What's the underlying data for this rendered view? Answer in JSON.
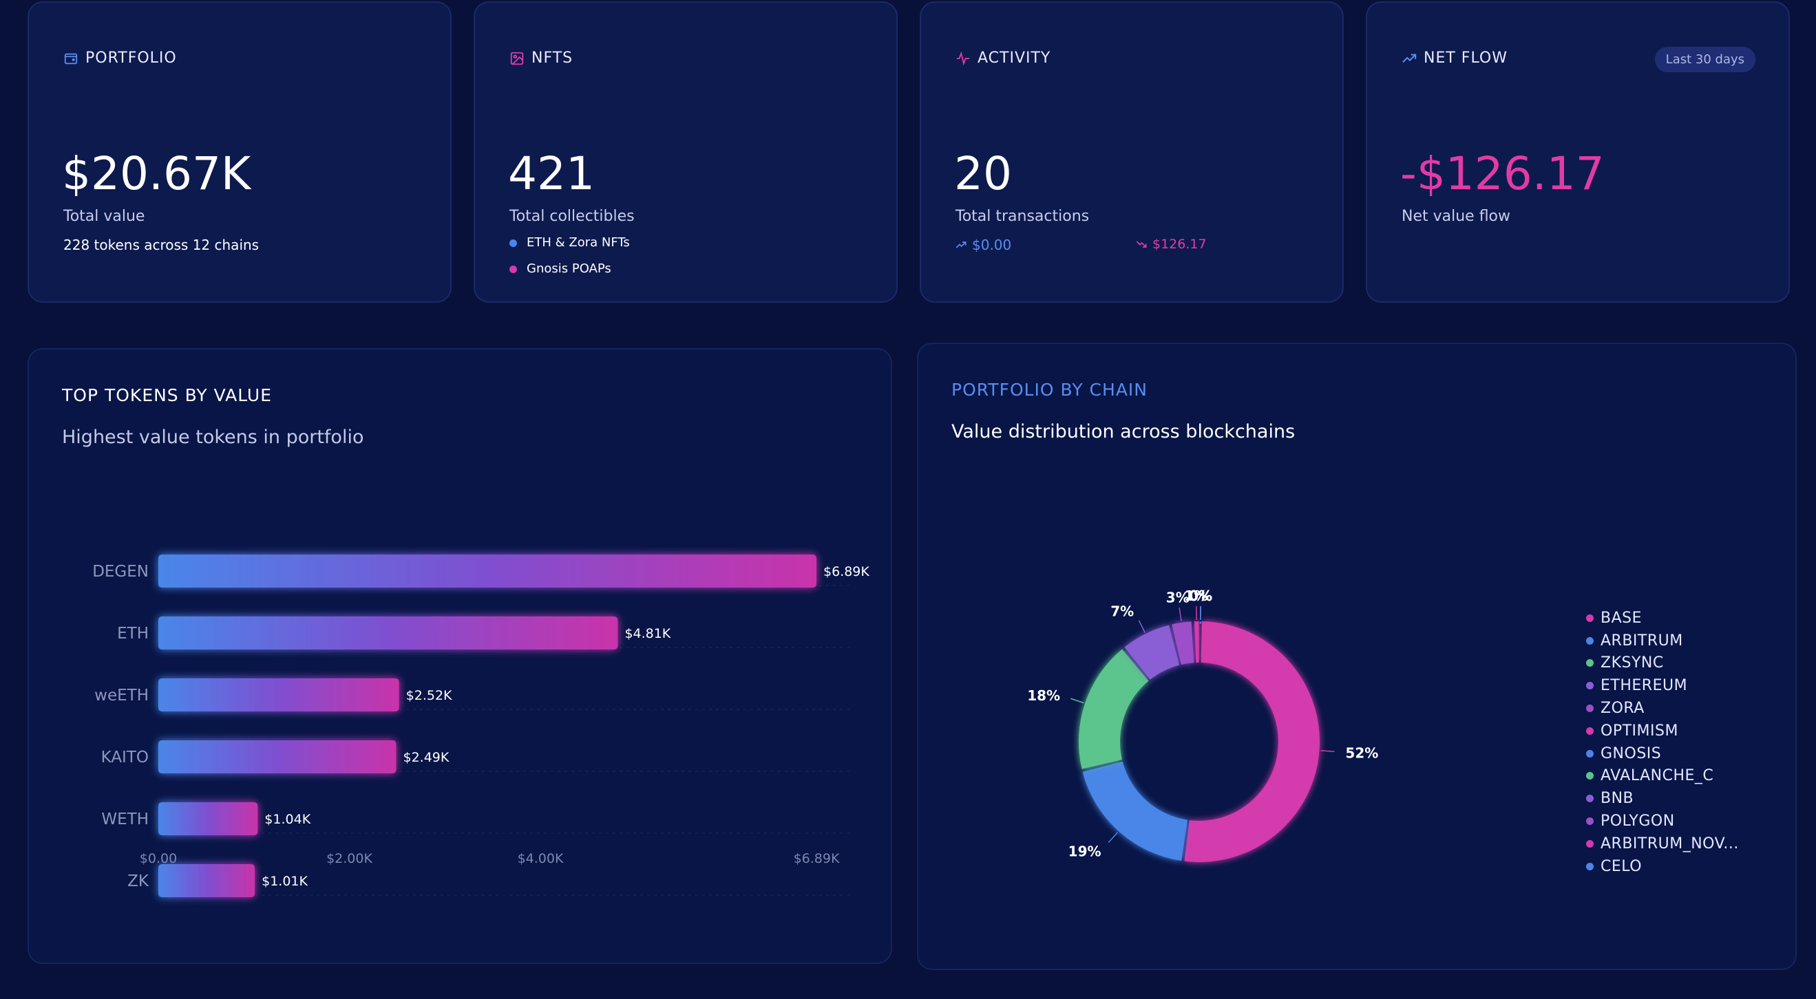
{
  "colors": {
    "blue": "#4a86e8",
    "pink": "#d43aad",
    "green": "#5bc48d",
    "purple": "#8a5fd6",
    "teal": "#3fb57a",
    "accent_blue": "#5a8df0",
    "accent_pink": "#e23ba6"
  },
  "cards": {
    "portfolio": {
      "title": "PORTFOLIO",
      "icon": "wallet-icon",
      "value": "$20.67K",
      "label": "Total value",
      "sub": "228 tokens across 12 chains"
    },
    "nfts": {
      "title": "NFTS",
      "icon": "image-icon",
      "value": "421",
      "label": "Total collectibles",
      "items": [
        "ETH & Zora NFTs",
        "Gnosis POAPs"
      ]
    },
    "activity": {
      "title": "ACTIVITY",
      "icon": "activity-icon",
      "value": "20",
      "label": "Total transactions",
      "in_value": "$0.00",
      "out_value": "$126.17"
    },
    "netflow": {
      "title": "NET FLOW",
      "icon": "trending-up-icon",
      "badge": "Last 30 days",
      "value": "-$126.17",
      "label": "Net value flow"
    }
  },
  "top_tokens": {
    "title": "TOP TOKENS BY VALUE",
    "subtitle": "Highest value tokens in portfolio"
  },
  "chain_panel": {
    "title": "PORTFOLIO BY CHAIN",
    "subtitle": "Value distribution across blockchains",
    "legend": [
      "BASE",
      "ARBITRUM",
      "ZKSYNC",
      "ETHEREUM",
      "ZORA",
      "OPTIMISM",
      "GNOSIS",
      "AVALANCHE_C",
      "BNB",
      "POLYGON",
      "ARBITRUM_NOV...",
      "CELO"
    ],
    "legend_colors": [
      "#d43aad",
      "#4a86e8",
      "#5bc48d",
      "#8a5fd6",
      "#9c4fc9",
      "#d43aad",
      "#4a86e8",
      "#5bc48d",
      "#8a5fd6",
      "#9c4fc9",
      "#d43aad",
      "#4a86e8"
    ]
  },
  "chart_data": [
    {
      "type": "bar",
      "orientation": "horizontal",
      "title": "TOP TOKENS BY VALUE",
      "categories": [
        "DEGEN",
        "ETH",
        "weETH",
        "KAITO",
        "WETH",
        "ZK"
      ],
      "values": [
        6890,
        4810,
        2520,
        2490,
        1040,
        1010
      ],
      "value_labels": [
        "$6.89K",
        "$4.81K",
        "$2.52K",
        "$2.49K",
        "$1.04K",
        "$1.01K"
      ],
      "xticks": [
        "$0.00",
        "$2.00K",
        "$4.00K",
        "$6.89K"
      ],
      "xtick_values": [
        0,
        2000,
        4000,
        6890
      ],
      "xlim": [
        0,
        6890
      ]
    },
    {
      "type": "pie",
      "style": "donut",
      "title": "PORTFOLIO BY CHAIN",
      "labels": [
        "BASE",
        "ARBITRUM",
        "ZKSYNC",
        "ETHEREUM",
        "ZORA",
        "OPTIMISM",
        "GNOSIS",
        "AVALANCHE_C",
        "BNB",
        "POLYGON",
        "ARBITRUM_NOV...",
        "CELO"
      ],
      "values": [
        52,
        19,
        18,
        7,
        3,
        1,
        0,
        0,
        0,
        0,
        0,
        0
      ],
      "value_labels": [
        "52%",
        "19%",
        "18%",
        "7%",
        "3%",
        "1%",
        "0%",
        "0%",
        "0%",
        "0%",
        "0%",
        "0%"
      ]
    }
  ]
}
